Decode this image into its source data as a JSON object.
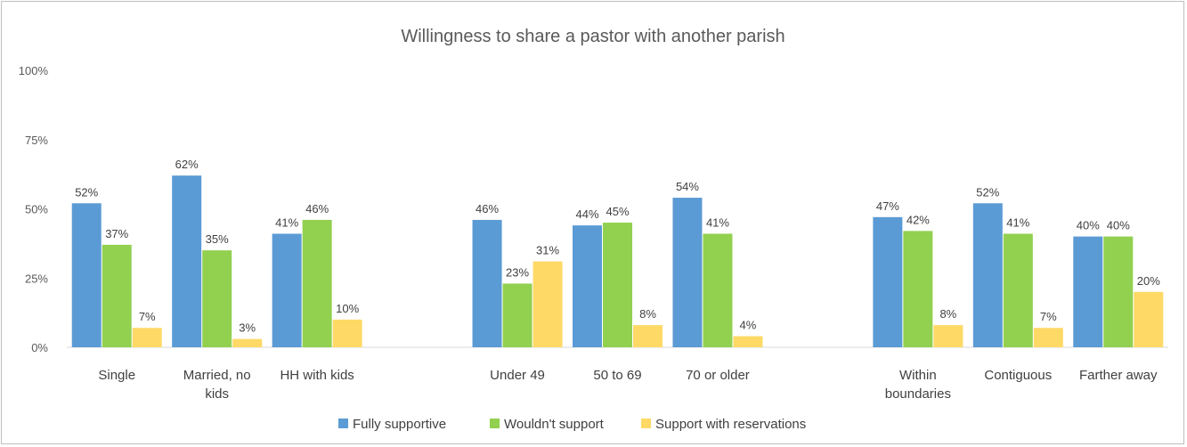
{
  "chart_data": {
    "type": "bar",
    "title": "Willingness to share a pastor with another parish",
    "yticks": [
      "0%",
      "25%",
      "50%",
      "75%",
      "100%"
    ],
    "ylim": [
      0,
      100
    ],
    "grid": false,
    "legend_position": "bottom",
    "categories": [
      [
        "Single"
      ],
      [
        "Married, no",
        "kids"
      ],
      [
        "HH with kids"
      ],
      [],
      [
        "Under 49"
      ],
      [
        "50 to 69"
      ],
      [
        "70 or older"
      ],
      [],
      [
        "Within",
        "boundaries"
      ],
      [
        "Contiguous"
      ],
      [
        "Farther away"
      ]
    ],
    "series": [
      {
        "name": "Fully supportive",
        "color": "#5b9bd5",
        "values": [
          52,
          62,
          41,
          null,
          46,
          44,
          54,
          null,
          47,
          52,
          40
        ],
        "labels": [
          "52%",
          "62%",
          "41%",
          "",
          "46%",
          "44%",
          "54%",
          "",
          "47%",
          "52%",
          "40%"
        ]
      },
      {
        "name": "Wouldn't support",
        "color": "#92d050",
        "values": [
          37,
          35,
          46,
          null,
          23,
          45,
          41,
          null,
          42,
          41,
          40
        ],
        "labels": [
          "37%",
          "35%",
          "46%",
          "",
          "23%",
          "45%",
          "41%",
          "",
          "42%",
          "41%",
          "40%"
        ]
      },
      {
        "name": "Support with reservations",
        "color": "#ffd966",
        "values": [
          7,
          3,
          10,
          null,
          31,
          8,
          4,
          null,
          8,
          7,
          20
        ],
        "labels": [
          "7%",
          "3%",
          "10%",
          "",
          "31%",
          "8%",
          "4%",
          "",
          "8%",
          "7%",
          "20%"
        ]
      }
    ]
  }
}
